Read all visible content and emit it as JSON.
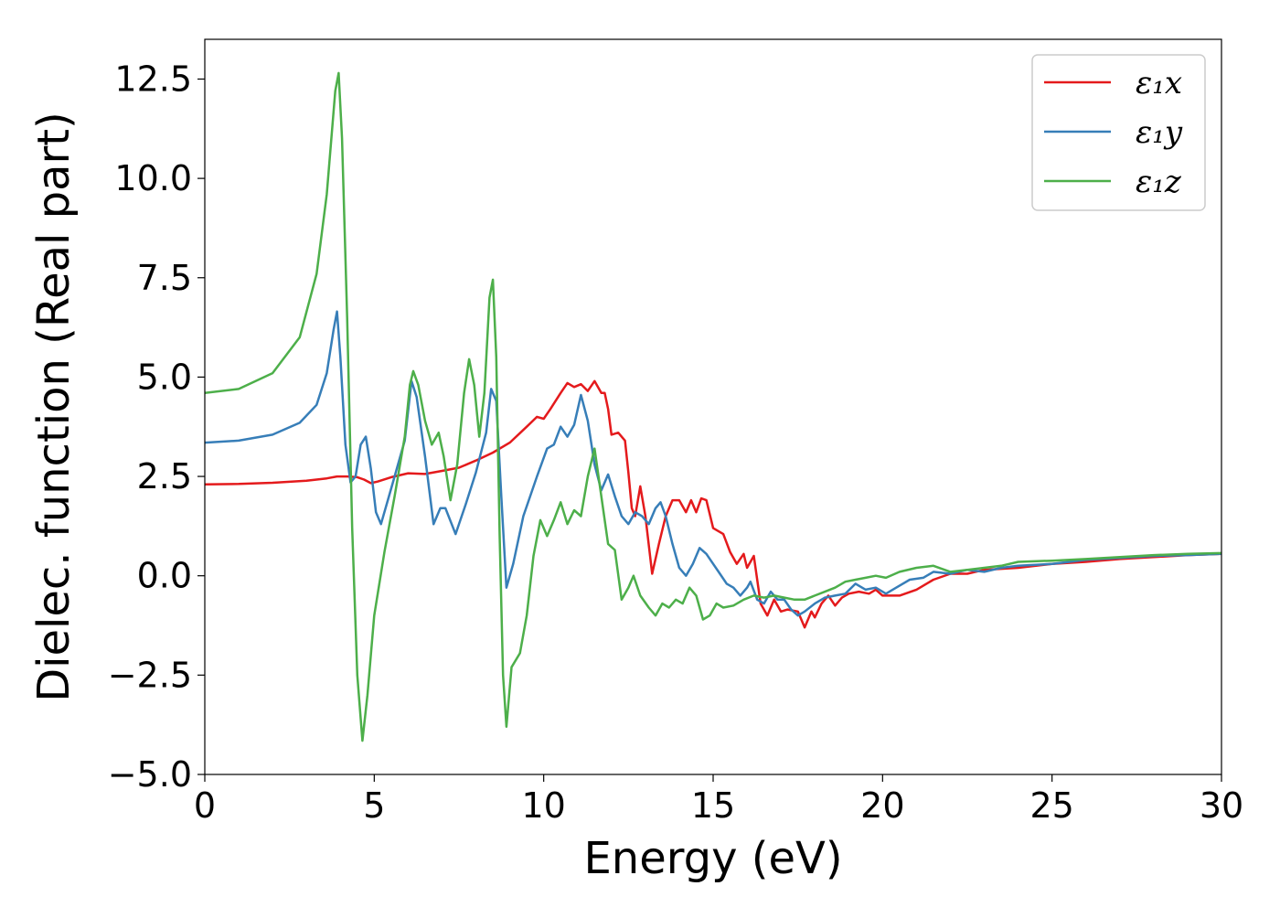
{
  "chart_data": {
    "type": "line",
    "title": "",
    "xlabel": "Energy (eV)",
    "ylabel": "Dielec. function (Real part)",
    "xlim": [
      0,
      30
    ],
    "ylim": [
      -5.0,
      13.5
    ],
    "xticks": [
      0,
      5,
      10,
      15,
      20,
      25,
      30
    ],
    "xtick_labels": [
      "0",
      "5",
      "10",
      "15",
      "20",
      "25",
      "30"
    ],
    "yticks": [
      -5.0,
      -2.5,
      0.0,
      2.5,
      5.0,
      7.5,
      10.0,
      12.5
    ],
    "ytick_labels": [
      "−5.0",
      "−2.5",
      "0.0",
      "2.5",
      "5.0",
      "7.5",
      "10.0",
      "12.5"
    ],
    "grid": false,
    "legend": {
      "position": "top-right",
      "entries": [
        "ε₁x",
        "ε₁y",
        "ε₁z"
      ]
    },
    "series": [
      {
        "name": "ε₁x",
        "color": "#e41a1c",
        "points": [
          [
            0,
            2.3
          ],
          [
            1,
            2.31
          ],
          [
            2,
            2.34
          ],
          [
            3,
            2.39
          ],
          [
            3.6,
            2.45
          ],
          [
            3.9,
            2.5
          ],
          [
            4.2,
            2.5
          ],
          [
            4.5,
            2.48
          ],
          [
            4.7,
            2.42
          ],
          [
            4.9,
            2.33
          ],
          [
            5.1,
            2.37
          ],
          [
            5.5,
            2.48
          ],
          [
            6,
            2.58
          ],
          [
            6.5,
            2.56
          ],
          [
            7,
            2.64
          ],
          [
            7.5,
            2.72
          ],
          [
            8,
            2.9
          ],
          [
            8.5,
            3.1
          ],
          [
            9,
            3.35
          ],
          [
            9.5,
            3.75
          ],
          [
            9.8,
            4.0
          ],
          [
            10,
            3.95
          ],
          [
            10.2,
            4.2
          ],
          [
            10.5,
            4.6
          ],
          [
            10.7,
            4.85
          ],
          [
            10.9,
            4.75
          ],
          [
            11.1,
            4.82
          ],
          [
            11.3,
            4.65
          ],
          [
            11.5,
            4.9
          ],
          [
            11.7,
            4.6
          ],
          [
            11.8,
            4.6
          ],
          [
            11.9,
            4.2
          ],
          [
            12.0,
            3.55
          ],
          [
            12.2,
            3.6
          ],
          [
            12.4,
            3.4
          ],
          [
            12.5,
            2.6
          ],
          [
            12.6,
            1.7
          ],
          [
            12.7,
            1.5
          ],
          [
            12.85,
            2.25
          ],
          [
            13.0,
            1.5
          ],
          [
            13.2,
            0.05
          ],
          [
            13.4,
            0.8
          ],
          [
            13.6,
            1.5
          ],
          [
            13.8,
            1.9
          ],
          [
            14.0,
            1.9
          ],
          [
            14.2,
            1.6
          ],
          [
            14.35,
            1.9
          ],
          [
            14.5,
            1.6
          ],
          [
            14.65,
            1.95
          ],
          [
            14.8,
            1.9
          ],
          [
            15.0,
            1.2
          ],
          [
            15.3,
            1.05
          ],
          [
            15.5,
            0.6
          ],
          [
            15.7,
            0.3
          ],
          [
            15.9,
            0.55
          ],
          [
            16.0,
            0.2
          ],
          [
            16.2,
            0.5
          ],
          [
            16.4,
            -0.7
          ],
          [
            16.6,
            -1.0
          ],
          [
            16.8,
            -0.6
          ],
          [
            17.0,
            -0.9
          ],
          [
            17.2,
            -0.85
          ],
          [
            17.5,
            -0.9
          ],
          [
            17.7,
            -1.3
          ],
          [
            17.9,
            -0.9
          ],
          [
            18.0,
            -1.05
          ],
          [
            18.2,
            -0.7
          ],
          [
            18.4,
            -0.5
          ],
          [
            18.6,
            -0.75
          ],
          [
            18.8,
            -0.55
          ],
          [
            19.0,
            -0.45
          ],
          [
            19.3,
            -0.4
          ],
          [
            19.6,
            -0.45
          ],
          [
            19.8,
            -0.35
          ],
          [
            20.0,
            -0.5
          ],
          [
            20.5,
            -0.5
          ],
          [
            21.0,
            -0.35
          ],
          [
            21.5,
            -0.1
          ],
          [
            22.0,
            0.05
          ],
          [
            22.5,
            0.05
          ],
          [
            23.0,
            0.15
          ],
          [
            24.0,
            0.2
          ],
          [
            25.0,
            0.3
          ],
          [
            26.0,
            0.35
          ],
          [
            27.0,
            0.42
          ],
          [
            28.0,
            0.47
          ],
          [
            29.0,
            0.52
          ],
          [
            30.0,
            0.55
          ]
        ]
      },
      {
        "name": "ε₁y",
        "color": "#377eb8",
        "points": [
          [
            0,
            3.35
          ],
          [
            1,
            3.4
          ],
          [
            2,
            3.55
          ],
          [
            2.8,
            3.85
          ],
          [
            3.3,
            4.3
          ],
          [
            3.6,
            5.1
          ],
          [
            3.8,
            6.2
          ],
          [
            3.9,
            6.65
          ],
          [
            4.0,
            5.5
          ],
          [
            4.15,
            3.3
          ],
          [
            4.3,
            2.35
          ],
          [
            4.45,
            2.5
          ],
          [
            4.6,
            3.3
          ],
          [
            4.75,
            3.5
          ],
          [
            4.9,
            2.7
          ],
          [
            5.05,
            1.6
          ],
          [
            5.2,
            1.3
          ],
          [
            5.5,
            2.2
          ],
          [
            5.9,
            3.4
          ],
          [
            6.1,
            4.9
          ],
          [
            6.25,
            4.5
          ],
          [
            6.5,
            3.0
          ],
          [
            6.75,
            1.3
          ],
          [
            6.95,
            1.7
          ],
          [
            7.1,
            1.7
          ],
          [
            7.4,
            1.05
          ],
          [
            7.7,
            1.8
          ],
          [
            8.0,
            2.6
          ],
          [
            8.3,
            3.6
          ],
          [
            8.45,
            4.7
          ],
          [
            8.6,
            4.4
          ],
          [
            8.75,
            2.0
          ],
          [
            8.9,
            -0.3
          ],
          [
            9.1,
            0.3
          ],
          [
            9.4,
            1.5
          ],
          [
            9.8,
            2.5
          ],
          [
            10.1,
            3.2
          ],
          [
            10.3,
            3.3
          ],
          [
            10.5,
            3.75
          ],
          [
            10.7,
            3.5
          ],
          [
            10.9,
            3.8
          ],
          [
            11.1,
            4.55
          ],
          [
            11.3,
            3.9
          ],
          [
            11.5,
            2.8
          ],
          [
            11.7,
            2.15
          ],
          [
            11.9,
            2.55
          ],
          [
            12.1,
            2.0
          ],
          [
            12.3,
            1.5
          ],
          [
            12.5,
            1.3
          ],
          [
            12.7,
            1.6
          ],
          [
            12.9,
            1.5
          ],
          [
            13.1,
            1.3
          ],
          [
            13.3,
            1.7
          ],
          [
            13.45,
            1.85
          ],
          [
            13.6,
            1.5
          ],
          [
            13.8,
            0.8
          ],
          [
            14.0,
            0.2
          ],
          [
            14.2,
            0.0
          ],
          [
            14.4,
            0.3
          ],
          [
            14.6,
            0.7
          ],
          [
            14.8,
            0.55
          ],
          [
            15.0,
            0.3
          ],
          [
            15.2,
            0.05
          ],
          [
            15.4,
            -0.2
          ],
          [
            15.6,
            -0.3
          ],
          [
            15.8,
            -0.5
          ],
          [
            16.0,
            -0.3
          ],
          [
            16.1,
            -0.15
          ],
          [
            16.3,
            -0.6
          ],
          [
            16.5,
            -0.7
          ],
          [
            16.7,
            -0.4
          ],
          [
            16.9,
            -0.6
          ],
          [
            17.1,
            -0.6
          ],
          [
            17.3,
            -0.85
          ],
          [
            17.5,
            -1.0
          ],
          [
            17.7,
            -0.9
          ],
          [
            18.0,
            -0.7
          ],
          [
            18.3,
            -0.55
          ],
          [
            18.6,
            -0.5
          ],
          [
            18.9,
            -0.45
          ],
          [
            19.2,
            -0.2
          ],
          [
            19.5,
            -0.35
          ],
          [
            19.8,
            -0.3
          ],
          [
            20.1,
            -0.45
          ],
          [
            20.4,
            -0.3
          ],
          [
            20.8,
            -0.1
          ],
          [
            21.2,
            -0.05
          ],
          [
            21.5,
            0.1
          ],
          [
            22.0,
            0.05
          ],
          [
            22.5,
            0.15
          ],
          [
            23.0,
            0.1
          ],
          [
            23.5,
            0.2
          ],
          [
            24.0,
            0.25
          ],
          [
            25.0,
            0.3
          ],
          [
            26.0,
            0.4
          ],
          [
            27.0,
            0.45
          ],
          [
            28.0,
            0.5
          ],
          [
            29.0,
            0.52
          ],
          [
            30.0,
            0.55
          ]
        ]
      },
      {
        "name": "ε₁z",
        "color": "#4daf4a",
        "points": [
          [
            0,
            4.6
          ],
          [
            1,
            4.7
          ],
          [
            2,
            5.1
          ],
          [
            2.8,
            6.0
          ],
          [
            3.3,
            7.6
          ],
          [
            3.6,
            9.6
          ],
          [
            3.85,
            12.2
          ],
          [
            3.95,
            12.65
          ],
          [
            4.05,
            11.0
          ],
          [
            4.2,
            6.5
          ],
          [
            4.35,
            1.2
          ],
          [
            4.5,
            -2.5
          ],
          [
            4.65,
            -4.15
          ],
          [
            4.8,
            -3.0
          ],
          [
            5.0,
            -1.0
          ],
          [
            5.3,
            0.6
          ],
          [
            5.6,
            2.0
          ],
          [
            5.9,
            3.5
          ],
          [
            6.05,
            4.8
          ],
          [
            6.15,
            5.15
          ],
          [
            6.3,
            4.8
          ],
          [
            6.5,
            3.9
          ],
          [
            6.7,
            3.3
          ],
          [
            6.9,
            3.6
          ],
          [
            7.05,
            3.0
          ],
          [
            7.25,
            1.9
          ],
          [
            7.45,
            2.8
          ],
          [
            7.65,
            4.6
          ],
          [
            7.8,
            5.45
          ],
          [
            7.95,
            4.8
          ],
          [
            8.1,
            3.5
          ],
          [
            8.25,
            4.6
          ],
          [
            8.4,
            7.0
          ],
          [
            8.5,
            7.45
          ],
          [
            8.6,
            5.5
          ],
          [
            8.7,
            1.0
          ],
          [
            8.8,
            -2.5
          ],
          [
            8.9,
            -3.8
          ],
          [
            9.05,
            -2.3
          ],
          [
            9.3,
            -1.95
          ],
          [
            9.5,
            -1.0
          ],
          [
            9.7,
            0.5
          ],
          [
            9.9,
            1.4
          ],
          [
            10.1,
            1.0
          ],
          [
            10.3,
            1.4
          ],
          [
            10.5,
            1.85
          ],
          [
            10.7,
            1.3
          ],
          [
            10.9,
            1.65
          ],
          [
            11.1,
            1.5
          ],
          [
            11.3,
            2.5
          ],
          [
            11.5,
            3.2
          ],
          [
            11.7,
            2.0
          ],
          [
            11.9,
            0.8
          ],
          [
            12.1,
            0.65
          ],
          [
            12.3,
            -0.6
          ],
          [
            12.5,
            -0.3
          ],
          [
            12.65,
            0.0
          ],
          [
            12.85,
            -0.5
          ],
          [
            13.1,
            -0.8
          ],
          [
            13.3,
            -1.0
          ],
          [
            13.5,
            -0.7
          ],
          [
            13.7,
            -0.8
          ],
          [
            13.9,
            -0.6
          ],
          [
            14.1,
            -0.7
          ],
          [
            14.3,
            -0.3
          ],
          [
            14.5,
            -0.5
          ],
          [
            14.7,
            -1.1
          ],
          [
            14.9,
            -1.0
          ],
          [
            15.1,
            -0.7
          ],
          [
            15.3,
            -0.8
          ],
          [
            15.6,
            -0.75
          ],
          [
            15.9,
            -0.6
          ],
          [
            16.2,
            -0.5
          ],
          [
            16.5,
            -0.55
          ],
          [
            16.8,
            -0.5
          ],
          [
            17.1,
            -0.55
          ],
          [
            17.4,
            -0.6
          ],
          [
            17.7,
            -0.6
          ],
          [
            18.0,
            -0.5
          ],
          [
            18.3,
            -0.4
          ],
          [
            18.6,
            -0.3
          ],
          [
            18.9,
            -0.15
          ],
          [
            19.2,
            -0.1
          ],
          [
            19.5,
            -0.05
          ],
          [
            19.8,
            0.0
          ],
          [
            20.1,
            -0.05
          ],
          [
            20.5,
            0.1
          ],
          [
            21.0,
            0.2
          ],
          [
            21.5,
            0.25
          ],
          [
            22.0,
            0.1
          ],
          [
            22.5,
            0.15
          ],
          [
            23.0,
            0.2
          ],
          [
            23.5,
            0.25
          ],
          [
            24.0,
            0.35
          ],
          [
            25.0,
            0.38
          ],
          [
            26.0,
            0.42
          ],
          [
            27.0,
            0.47
          ],
          [
            28.0,
            0.52
          ],
          [
            29.0,
            0.55
          ],
          [
            30.0,
            0.57
          ]
        ]
      }
    ]
  }
}
